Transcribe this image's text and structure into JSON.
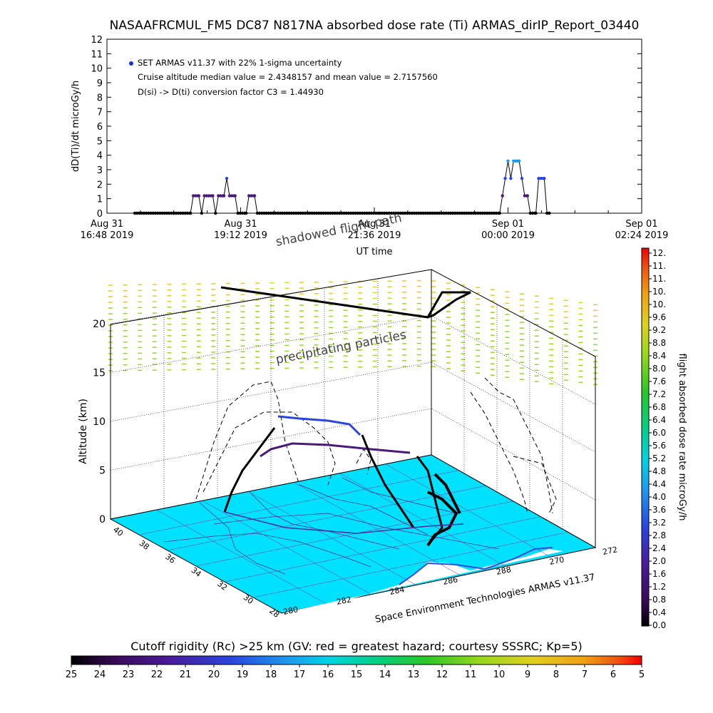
{
  "title": "NASAAFRCMUL_FM5 DC87 N817NA absorbed dose rate (Ti) ARMAS_dirIP_Report_03440",
  "chart_data": [
    {
      "type": "scatter",
      "ylabel": "dD(Ti)/dt microGy/h",
      "xlabel": "UT time",
      "ylim": [
        0,
        12
      ],
      "yticks": [
        "0",
        "1",
        "2",
        "3",
        "4",
        "5",
        "6",
        "7",
        "8",
        "9",
        "10",
        "11",
        "12"
      ],
      "xticks": [
        {
          "line1": "Aug 31",
          "line2": "16:48 2019"
        },
        {
          "line1": "Aug 31",
          "line2": "19:12 2019"
        },
        {
          "line1": "Aug 31",
          "line2": "21:36 2019"
        },
        {
          "line1": "Sep 01",
          "line2": "00:00 2019"
        },
        {
          "line1": "Sep 01",
          "line2": "02:24 2019"
        }
      ],
      "legend": "SET ARMAS v11.37 with 22% 1-sigma uncertainty",
      "annotations": [
        "Cruise altitude median value = 2.4348157 and mean value = 2.7157560",
        "D(si) -> D(ti) conversion factor C3 = 1.44930"
      ],
      "series": [
        {
          "segments": [
            [
              [
                17.3,
                0
              ],
              [
                18.0,
                0
              ],
              [
                18.3,
                0
              ],
              [
                18.35,
                1.2
              ],
              [
                18.45,
                1.2
              ],
              [
                18.5,
                0
              ],
              [
                18.55,
                1.2
              ],
              [
                18.7,
                1.2
              ],
              [
                18.75,
                0
              ],
              [
                18.8,
                1.2
              ],
              [
                18.9,
                1.2
              ],
              [
                18.95,
                2.4
              ],
              [
                19.0,
                1.2
              ],
              [
                19.1,
                1.2
              ],
              [
                19.15,
                0
              ],
              [
                19.3,
                0
              ],
              [
                19.35,
                1.2
              ],
              [
                19.45,
                1.2
              ],
              [
                19.5,
                0
              ],
              [
                21.7,
                0
              ],
              [
                23.85,
                0
              ]
            ],
            [
              [
                23.85,
                0
              ],
              [
                23.9,
                1.2
              ],
              [
                23.95,
                2.4
              ],
              [
                24.0,
                3.6
              ],
              [
                24.05,
                2.4
              ],
              [
                24.1,
                3.6
              ],
              [
                24.2,
                3.6
              ],
              [
                24.25,
                2.4
              ],
              [
                24.3,
                1.2
              ],
              [
                24.35,
                1.2
              ],
              [
                24.4,
                0
              ],
              [
                24.5,
                0
              ],
              [
                24.55,
                2.4
              ],
              [
                24.65,
                2.4
              ],
              [
                24.7,
                0
              ],
              [
                24.75,
                0
              ]
            ]
          ]
        }
      ]
    },
    {
      "type": "scatter",
      "ylabel": "Altitude (km)",
      "zticks": [
        "0",
        "5",
        "10",
        "15",
        "20"
      ],
      "lat_ticks": [
        "40",
        "38",
        "36",
        "34",
        "32",
        "30",
        "28"
      ],
      "lon_ticks": [
        "280",
        "282",
        "284",
        "286",
        "288",
        "270",
        "272"
      ],
      "annotations": [
        "shadowed flight path",
        "precipitating particles"
      ],
      "credit": "Space Environment Technologies ARMAS v11.37"
    }
  ],
  "colorbar_right": {
    "label": "flight absorbed dose rate microGy/h",
    "ticks": [
      "12.",
      "11.",
      "11.",
      "10.",
      "10.",
      "9.6",
      "9.2",
      "8.8",
      "8.4",
      "8.0",
      "7.6",
      "7.2",
      "6.8",
      "6.4",
      "6.0",
      "5.6",
      "5.2",
      "4.8",
      "4.4",
      "4.0",
      "3.6",
      "3.2",
      "2.8",
      "2.4",
      "2.0",
      "1.6",
      "1.2",
      "0.8",
      "0.4",
      "0.0"
    ]
  },
  "colorbar_bottom": {
    "label": "Cutoff rigidity (Rc) >25 km (GV: red = greatest hazard; courtesy SSSRC; Kp=5)",
    "ticks": [
      "25",
      "24",
      "23",
      "22",
      "21",
      "20",
      "19",
      "18",
      "17",
      "16",
      "15",
      "14",
      "13",
      "12",
      "11",
      "10",
      "9",
      "8",
      "7",
      "6",
      "5"
    ]
  },
  "colors": {
    "ground": "#00e1ff",
    "ground_low": "#ffffff",
    "data_high": "#3a4ad8",
    "data_mid": "#6a2a9a",
    "precip": "#9ad81a"
  }
}
